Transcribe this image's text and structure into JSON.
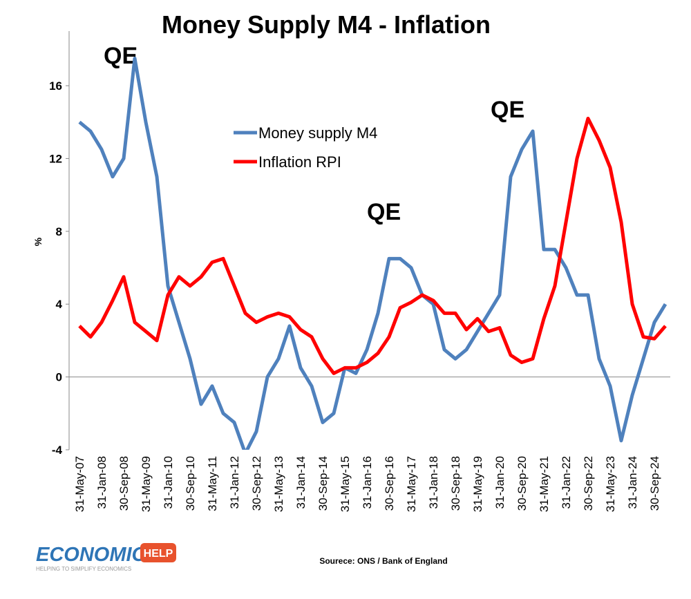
{
  "chart_data": {
    "type": "line",
    "title": "Money Supply M4 - Inflation",
    "y_label": "%",
    "categories": [
      "31-May-07",
      null,
      "31-Jan-08",
      null,
      "30-Sep-08",
      null,
      "31-May-09",
      null,
      "31-Jan-10",
      null,
      "30-Sep-10",
      null,
      "31-May-11",
      null,
      "31-Jan-12",
      null,
      "30-Sep-12",
      null,
      "31-May-13",
      null,
      "31-Jan-14",
      null,
      "30-Sep-14",
      null,
      "31-May-15",
      null,
      "31-Jan-16",
      null,
      "30-Sep-16",
      null,
      "31-May-17",
      null,
      "31-Jan-18",
      null,
      "30-Sep-18",
      null,
      "31-May-19",
      null,
      "31-Jan-20",
      null,
      "30-Sep-20",
      null,
      "31-May-21",
      null,
      "31-Jan-22",
      null,
      "30-Sep-22",
      null,
      "31-May-23",
      null,
      "31-Jan-24",
      null,
      "30-Sep-24",
      null
    ],
    "series": [
      {
        "name": "Money supply M4",
        "color": "#4f81bd",
        "values": [
          14,
          13.5,
          12.5,
          11,
          12,
          17.5,
          14,
          11,
          5,
          3,
          1,
          -1.5,
          -0.5,
          -2,
          -2.5,
          -4.2,
          -3,
          0,
          1,
          2.8,
          0.5,
          -0.5,
          -2.5,
          -2,
          0.5,
          0.2,
          1.5,
          3.5,
          6.5,
          6.5,
          6,
          4.5,
          4,
          1.5,
          1,
          1.5,
          2.5,
          3.5,
          4.5,
          11,
          12.5,
          13.5,
          7,
          7,
          6,
          4.5,
          4.5,
          1,
          -0.5,
          -3.5,
          -1,
          1,
          3,
          4
        ]
      },
      {
        "name": "Inflation RPI",
        "color": "#ff0000",
        "values": [
          2.8,
          2.2,
          3,
          4.2,
          5.5,
          3,
          2.5,
          2,
          4.5,
          5.5,
          5,
          5.5,
          6.3,
          6.5,
          5,
          3.5,
          3,
          3.3,
          3.5,
          3.3,
          2.6,
          2.2,
          1,
          0.2,
          0.5,
          0.5,
          0.8,
          1.3,
          2.2,
          3.8,
          4.1,
          4.5,
          4.2,
          3.5,
          3.5,
          2.6,
          3.2,
          2.5,
          2.7,
          1.2,
          0.8,
          1,
          3.2,
          5,
          8.5,
          12,
          14.2,
          13,
          11.5,
          8.5,
          4,
          2.2,
          2.1,
          2.8
        ]
      }
    ],
    "ylim": [
      -4,
      19
    ],
    "yticks": [
      -4,
      0,
      4,
      8,
      12,
      16
    ],
    "annotations": [
      "QE",
      "QE",
      "QE"
    ],
    "source": "Sourece: ONS / Bank of England",
    "logo": {
      "word": "ECONOMICS",
      "badge": "HELP",
      "tagline": "HELPING TO SIMPLIFY ECONOMICS"
    }
  }
}
